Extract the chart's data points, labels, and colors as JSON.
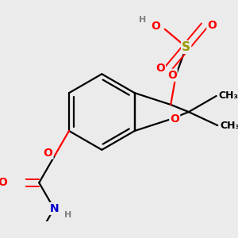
{
  "bg_color": "#ebebeb",
  "atom_colors": {
    "O": "#ff0000",
    "S": "#999900",
    "N": "#0000cc",
    "C": "#000000",
    "H": "#808080"
  },
  "bond_color": "#000000",
  "bond_width": 1.6,
  "font_size": 10,
  "title": ""
}
